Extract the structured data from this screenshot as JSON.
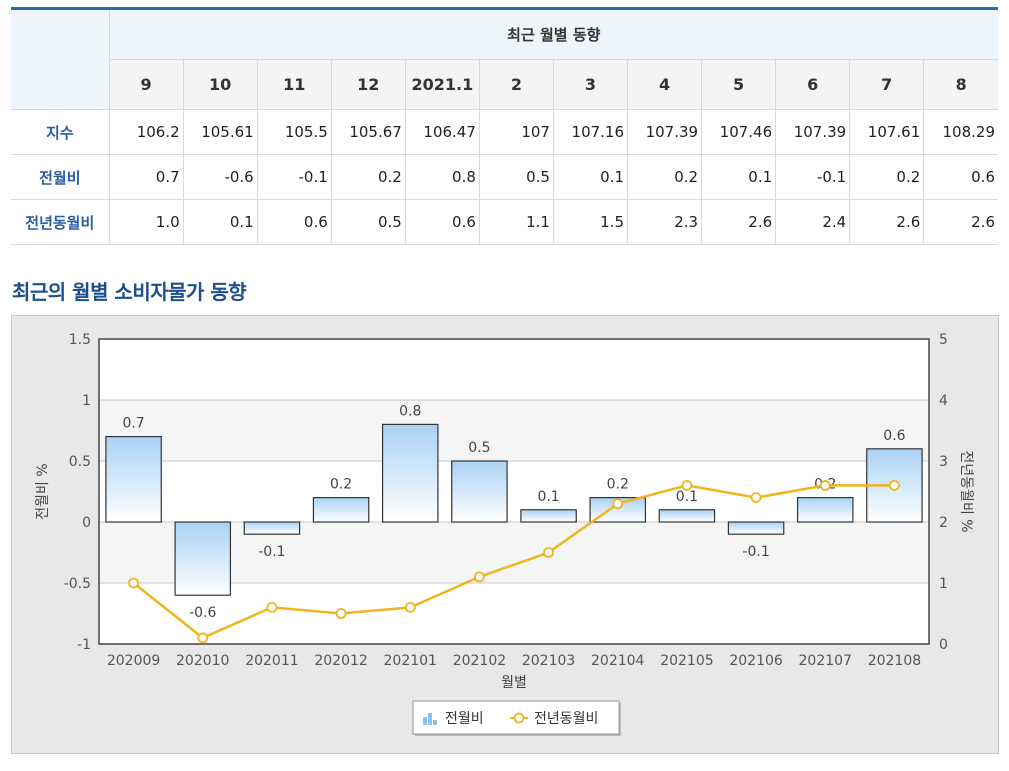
{
  "table": {
    "group_header": "최근 월별 동향",
    "months": [
      "9",
      "10",
      "11",
      "12",
      "2021.1",
      "2",
      "3",
      "4",
      "5",
      "6",
      "7",
      "8"
    ],
    "rows": [
      {
        "label": "지수",
        "values": [
          "106.2",
          "105.61",
          "105.5",
          "105.67",
          "106.47",
          "107",
          "107.16",
          "107.39",
          "107.46",
          "107.39",
          "107.61",
          "108.29"
        ]
      },
      {
        "label": "전월비",
        "values": [
          "0.7",
          "-0.6",
          "-0.1",
          "0.2",
          "0.8",
          "0.5",
          "0.1",
          "0.2",
          "0.1",
          "-0.1",
          "0.2",
          "0.6"
        ]
      },
      {
        "label": "전년동월비",
        "values": [
          "1.0",
          "0.1",
          "0.6",
          "0.5",
          "0.6",
          "1.1",
          "1.5",
          "2.3",
          "2.6",
          "2.4",
          "2.6",
          "2.6"
        ]
      }
    ]
  },
  "section_title": "최근의 월별 소비자물가 동향",
  "chart_data": {
    "type": "bar",
    "categories": [
      "202009",
      "202010",
      "202011",
      "202012",
      "202101",
      "202102",
      "202103",
      "202104",
      "202105",
      "202106",
      "202107",
      "202108"
    ],
    "series": [
      {
        "name": "전월비",
        "type": "bar",
        "axis": "left",
        "values": [
          0.7,
          -0.6,
          -0.1,
          0.2,
          0.8,
          0.5,
          0.1,
          0.2,
          0.1,
          -0.1,
          0.2,
          0.6
        ],
        "labels": [
          "0.7",
          "-0.6",
          "-0.1",
          "0.2",
          "0.8",
          "0.5",
          "0.1",
          "0.2",
          "0.1",
          "-0.1",
          "0.2",
          "0.6"
        ]
      },
      {
        "name": "전년동월비",
        "type": "line",
        "axis": "right",
        "values": [
          1.0,
          0.1,
          0.6,
          0.5,
          0.6,
          1.1,
          1.5,
          2.3,
          2.6,
          2.4,
          2.6,
          2.6
        ]
      }
    ],
    "xlabel": "월별",
    "ylabel": "전월비 %",
    "y2label": "전년동월비 %",
    "ylim": [
      -1,
      1.5
    ],
    "y2lim": [
      0,
      5
    ],
    "yticks": [
      "1.5",
      "1",
      "0.5",
      "0",
      "-0.5",
      "-1"
    ],
    "y2ticks": [
      "5",
      "4",
      "3",
      "2",
      "1",
      "0"
    ],
    "grid": true,
    "legend_position": "bottom-center",
    "colors": {
      "bar_top": "#a9d2f5",
      "bar_bottom": "#ffffff",
      "bar_stroke": "#333333",
      "line": "#f0b41c",
      "marker_fill": "#ffffff"
    }
  }
}
